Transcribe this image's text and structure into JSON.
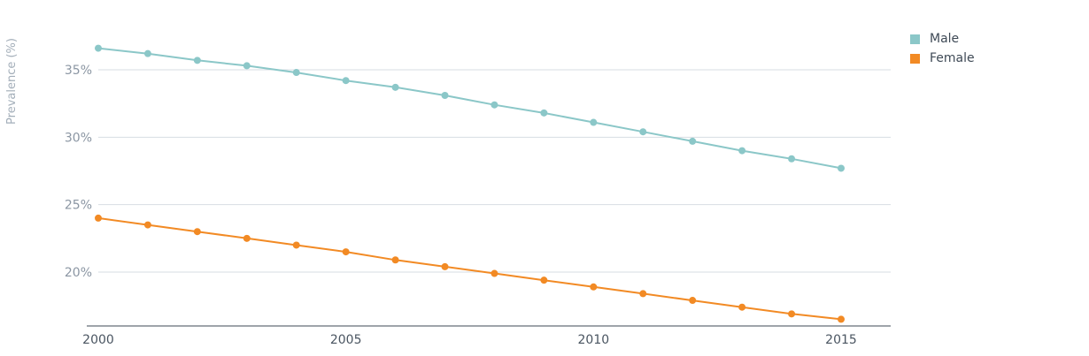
{
  "chart_data": {
    "type": "line",
    "ylabel": "Prevalence (%)",
    "xlabel": "",
    "x": [
      2000,
      2001,
      2002,
      2003,
      2004,
      2005,
      2006,
      2007,
      2008,
      2009,
      2010,
      2011,
      2012,
      2013,
      2014,
      2015
    ],
    "x_ticks": [
      2000,
      2005,
      2010,
      2015
    ],
    "y_ticks": [
      {
        "value": 20,
        "label": "20%"
      },
      {
        "value": 25,
        "label": "25%"
      },
      {
        "value": 30,
        "label": "30%"
      },
      {
        "value": 35,
        "label": "35%"
      }
    ],
    "ylim": [
      16,
      38
    ],
    "grid": true,
    "legend_position": "top-right",
    "series": [
      {
        "name": "Male",
        "color": "#8bc7c8",
        "values": [
          36.6,
          36.2,
          35.7,
          35.3,
          34.8,
          34.2,
          33.7,
          33.1,
          32.4,
          31.8,
          31.1,
          30.4,
          29.7,
          29.0,
          28.4,
          27.7
        ]
      },
      {
        "name": "Female",
        "color": "#f28a24",
        "values": [
          24.0,
          23.5,
          23.0,
          22.5,
          22.0,
          21.5,
          20.9,
          20.4,
          19.9,
          19.4,
          18.9,
          18.4,
          17.9,
          17.4,
          16.9,
          16.5
        ]
      }
    ]
  }
}
